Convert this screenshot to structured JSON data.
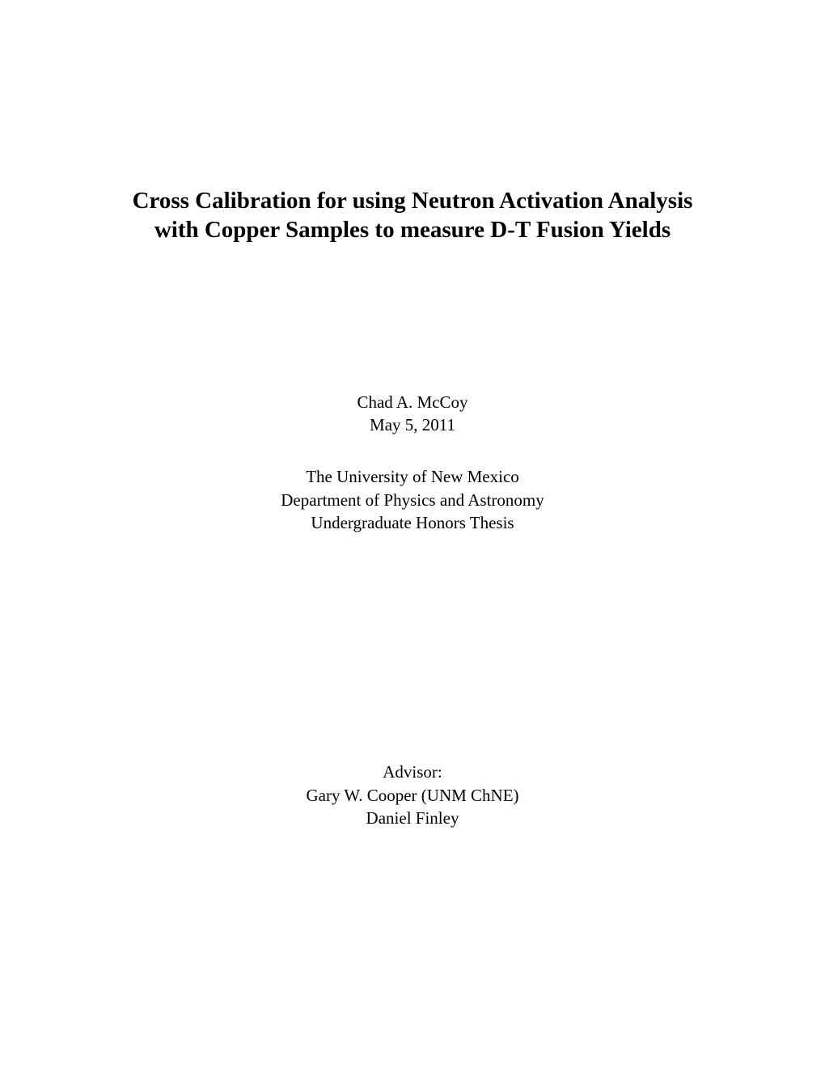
{
  "title": {
    "line1": "Cross Calibration for using Neutron Activation Analysis",
    "line2": "with Copper Samples to measure D-T Fusion Yields"
  },
  "author": {
    "name": "Chad A. McCoy",
    "date": "May 5, 2011"
  },
  "affiliation": {
    "university": "The University of New Mexico",
    "department": "Department of Physics and Astronomy",
    "thesis_type": "Undergraduate Honors Thesis"
  },
  "advisor": {
    "label": "Advisor:",
    "name1": "Gary W. Cooper (UNM ChNE)",
    "name2": "Daniel Finley"
  },
  "style": {
    "background_color": "#ffffff",
    "text_color": "#000000",
    "title_fontsize": 29,
    "title_fontweight": "bold",
    "body_fontsize": 21,
    "font_family": "Times New Roman"
  }
}
